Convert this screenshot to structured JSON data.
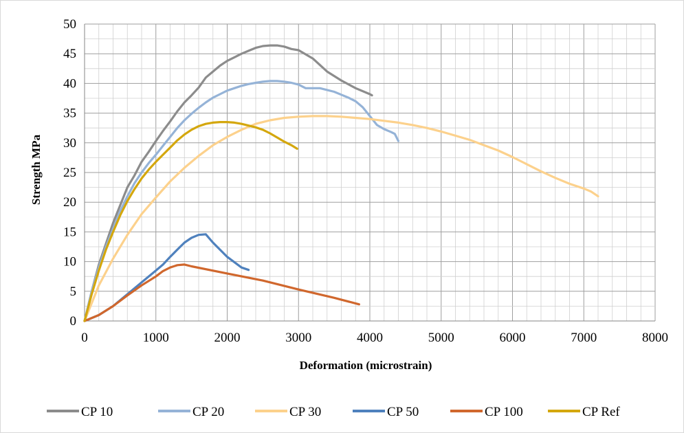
{
  "chart_data": {
    "type": "line",
    "title": "",
    "xlabel": "Deformation (microstrain)",
    "ylabel": "Strength  MPa",
    "xlim": [
      0,
      8000
    ],
    "ylim": [
      0,
      50
    ],
    "x_ticks": [
      0,
      1000,
      2000,
      3000,
      4000,
      5000,
      6000,
      7000,
      8000
    ],
    "y_ticks": [
      0,
      5,
      10,
      15,
      20,
      25,
      30,
      35,
      40,
      45,
      50
    ],
    "x_tick_labels": [
      "0",
      "1000",
      "2000",
      "3000",
      "4000",
      "5000",
      "6000",
      "7000",
      "8000"
    ],
    "y_tick_labels": [
      "0",
      "5",
      "10",
      "15",
      "20",
      "25",
      "30",
      "35",
      "40",
      "45",
      "50"
    ],
    "grid": true,
    "minor_grid": true,
    "legend_position": "bottom",
    "series": [
      {
        "name": "CP 10",
        "color": "#8c8c8c",
        "points": [
          [
            0,
            0
          ],
          [
            100,
            5
          ],
          [
            200,
            9.5
          ],
          [
            300,
            13
          ],
          [
            400,
            16.5
          ],
          [
            500,
            19.5
          ],
          [
            600,
            22.5
          ],
          [
            700,
            24.5
          ],
          [
            800,
            26.8
          ],
          [
            900,
            28.5
          ],
          [
            1000,
            30.3
          ],
          [
            1100,
            32
          ],
          [
            1200,
            33.6
          ],
          [
            1300,
            35.3
          ],
          [
            1400,
            36.8
          ],
          [
            1500,
            38
          ],
          [
            1600,
            39.3
          ],
          [
            1700,
            41
          ],
          [
            1800,
            42
          ],
          [
            1900,
            43
          ],
          [
            2000,
            43.8
          ],
          [
            2100,
            44.4
          ],
          [
            2200,
            45
          ],
          [
            2300,
            45.5
          ],
          [
            2400,
            46
          ],
          [
            2500,
            46.3
          ],
          [
            2600,
            46.4
          ],
          [
            2700,
            46.4
          ],
          [
            2800,
            46.2
          ],
          [
            2900,
            45.8
          ],
          [
            3000,
            45.6
          ],
          [
            3200,
            44.2
          ],
          [
            3400,
            42
          ],
          [
            3600,
            40.5
          ],
          [
            3800,
            39.2
          ],
          [
            4000,
            38.2
          ],
          [
            4030,
            38
          ]
        ]
      },
      {
        "name": "CP 20",
        "color": "#95b3d7",
        "points": [
          [
            0,
            0
          ],
          [
            100,
            5
          ],
          [
            200,
            9
          ],
          [
            300,
            12.5
          ],
          [
            400,
            15.5
          ],
          [
            500,
            18.5
          ],
          [
            600,
            21
          ],
          [
            700,
            23.2
          ],
          [
            800,
            25
          ],
          [
            900,
            26.6
          ],
          [
            1000,
            28
          ],
          [
            1100,
            29.5
          ],
          [
            1200,
            31
          ],
          [
            1300,
            32.5
          ],
          [
            1400,
            33.8
          ],
          [
            1500,
            34.9
          ],
          [
            1600,
            35.9
          ],
          [
            1700,
            36.8
          ],
          [
            1800,
            37.6
          ],
          [
            1900,
            38.2
          ],
          [
            2000,
            38.8
          ],
          [
            2100,
            39.2
          ],
          [
            2200,
            39.6
          ],
          [
            2300,
            39.9
          ],
          [
            2400,
            40.1
          ],
          [
            2500,
            40.3
          ],
          [
            2600,
            40.4
          ],
          [
            2700,
            40.4
          ],
          [
            2800,
            40.3
          ],
          [
            2900,
            40.1
          ],
          [
            3000,
            39.8
          ],
          [
            3100,
            39.2
          ],
          [
            3200,
            39.2
          ],
          [
            3300,
            39.2
          ],
          [
            3400,
            38.9
          ],
          [
            3500,
            38.6
          ],
          [
            3600,
            38.1
          ],
          [
            3700,
            37.6
          ],
          [
            3800,
            37
          ],
          [
            3900,
            36
          ],
          [
            4000,
            34.5
          ],
          [
            4100,
            33
          ],
          [
            4200,
            32.3
          ],
          [
            4300,
            31.8
          ],
          [
            4350,
            31.5
          ],
          [
            4400,
            30.3
          ]
        ]
      },
      {
        "name": "CP 30",
        "color": "#fcd18c",
        "points": [
          [
            0,
            0
          ],
          [
            200,
            6
          ],
          [
            400,
            10.5
          ],
          [
            600,
            14.5
          ],
          [
            800,
            18
          ],
          [
            1000,
            20.8
          ],
          [
            1200,
            23.5
          ],
          [
            1400,
            25.8
          ],
          [
            1600,
            27.8
          ],
          [
            1800,
            29.6
          ],
          [
            2000,
            31
          ],
          [
            2200,
            32.2
          ],
          [
            2400,
            33.2
          ],
          [
            2600,
            33.8
          ],
          [
            2800,
            34.2
          ],
          [
            3000,
            34.4
          ],
          [
            3200,
            34.5
          ],
          [
            3400,
            34.5
          ],
          [
            3600,
            34.4
          ],
          [
            3800,
            34.2
          ],
          [
            4000,
            34
          ],
          [
            4200,
            33.7
          ],
          [
            4400,
            33.4
          ],
          [
            4600,
            33
          ],
          [
            4800,
            32.5
          ],
          [
            5000,
            31.9
          ],
          [
            5200,
            31.2
          ],
          [
            5400,
            30.5
          ],
          [
            5600,
            29.6
          ],
          [
            5800,
            28.7
          ],
          [
            6000,
            27.6
          ],
          [
            6200,
            26.4
          ],
          [
            6400,
            25.2
          ],
          [
            6600,
            24.1
          ],
          [
            6800,
            23.1
          ],
          [
            7000,
            22.3
          ],
          [
            7100,
            21.8
          ],
          [
            7200,
            21
          ]
        ]
      },
      {
        "name": "CP 50",
        "color": "#4f81bd",
        "points": [
          [
            0,
            0
          ],
          [
            200,
            1
          ],
          [
            400,
            2.5
          ],
          [
            600,
            4.5
          ],
          [
            800,
            6.5
          ],
          [
            1000,
            8.5
          ],
          [
            1100,
            9.5
          ],
          [
            1200,
            10.8
          ],
          [
            1300,
            12
          ],
          [
            1400,
            13.2
          ],
          [
            1500,
            14
          ],
          [
            1600,
            14.5
          ],
          [
            1700,
            14.6
          ],
          [
            1800,
            13.2
          ],
          [
            2000,
            10.8
          ],
          [
            2200,
            9
          ],
          [
            2300,
            8.6
          ]
        ]
      },
      {
        "name": "CP 100",
        "color": "#d0672d",
        "points": [
          [
            0,
            0
          ],
          [
            200,
            1
          ],
          [
            400,
            2.5
          ],
          [
            600,
            4.3
          ],
          [
            800,
            6
          ],
          [
            1000,
            7.5
          ],
          [
            1100,
            8.4
          ],
          [
            1200,
            9
          ],
          [
            1300,
            9.4
          ],
          [
            1400,
            9.5
          ],
          [
            1500,
            9.2
          ],
          [
            2000,
            8
          ],
          [
            2500,
            6.8
          ],
          [
            3000,
            5.3
          ],
          [
            3500,
            3.9
          ],
          [
            3850,
            2.8
          ]
        ]
      },
      {
        "name": "CP Ref",
        "color": "#d4a70d",
        "points": [
          [
            0,
            0
          ],
          [
            100,
            4.5
          ],
          [
            200,
            8.5
          ],
          [
            300,
            12
          ],
          [
            400,
            15
          ],
          [
            500,
            17.8
          ],
          [
            600,
            20.2
          ],
          [
            700,
            22.2
          ],
          [
            800,
            24
          ],
          [
            900,
            25.5
          ],
          [
            1000,
            26.8
          ],
          [
            1100,
            28
          ],
          [
            1200,
            29.2
          ],
          [
            1300,
            30.4
          ],
          [
            1400,
            31.4
          ],
          [
            1500,
            32.2
          ],
          [
            1600,
            32.8
          ],
          [
            1700,
            33.2
          ],
          [
            1800,
            33.4
          ],
          [
            1900,
            33.5
          ],
          [
            2000,
            33.5
          ],
          [
            2100,
            33.4
          ],
          [
            2200,
            33.2
          ],
          [
            2300,
            32.9
          ],
          [
            2400,
            32.6
          ],
          [
            2500,
            32.2
          ],
          [
            2600,
            31.6
          ],
          [
            2700,
            30.9
          ],
          [
            2800,
            30.2
          ],
          [
            2900,
            29.6
          ],
          [
            2980,
            29
          ]
        ]
      }
    ]
  }
}
